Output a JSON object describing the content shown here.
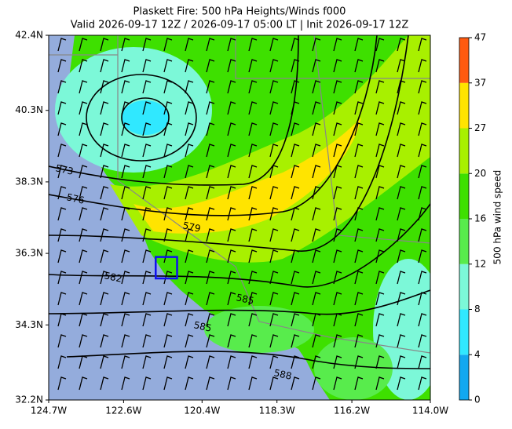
{
  "chart_data": {
    "type": "map",
    "title": "Plaskett Fire: 500 hPa Heights/Winds f000",
    "subtitle": "Valid 2026-09-17 12Z / 2026-09-17 05:00 LT | Init 2026-09-17 12Z",
    "xlim": [
      -124.7,
      -114.0
    ],
    "ylim": [
      32.2,
      42.4
    ],
    "xticks": [
      {
        "value": -124.7,
        "label": "124.7W"
      },
      {
        "value": -122.6,
        "label": "122.6W"
      },
      {
        "value": -120.4,
        "label": "120.4W"
      },
      {
        "value": -118.3,
        "label": "118.3W"
      },
      {
        "value": -116.2,
        "label": "116.2W"
      },
      {
        "value": -114.0,
        "label": "114.0W"
      }
    ],
    "yticks": [
      {
        "value": 32.2,
        "label": "32.2N"
      },
      {
        "value": 34.3,
        "label": "34.3N"
      },
      {
        "value": 36.3,
        "label": "36.3N"
      },
      {
        "value": 38.3,
        "label": "38.3N"
      },
      {
        "value": 40.3,
        "label": "40.3N"
      },
      {
        "value": 42.4,
        "label": "42.4N"
      }
    ],
    "colorbar": {
      "label": "500 hPa wind speed",
      "levels": [
        0,
        4,
        8,
        12,
        16,
        20,
        27,
        37,
        47
      ],
      "colors": [
        "#12a8f0",
        "#30e8ff",
        "#7cf8d8",
        "#58ec4c",
        "#3ee000",
        "#a8f000",
        "#ffe400",
        "#ff5a10"
      ]
    },
    "contour_labels": [
      573,
      576,
      579,
      582,
      585,
      585,
      588
    ],
    "fire_box": {
      "lon": [
        -121.7,
        -121.1
      ],
      "lat": [
        35.6,
        36.2
      ]
    }
  }
}
